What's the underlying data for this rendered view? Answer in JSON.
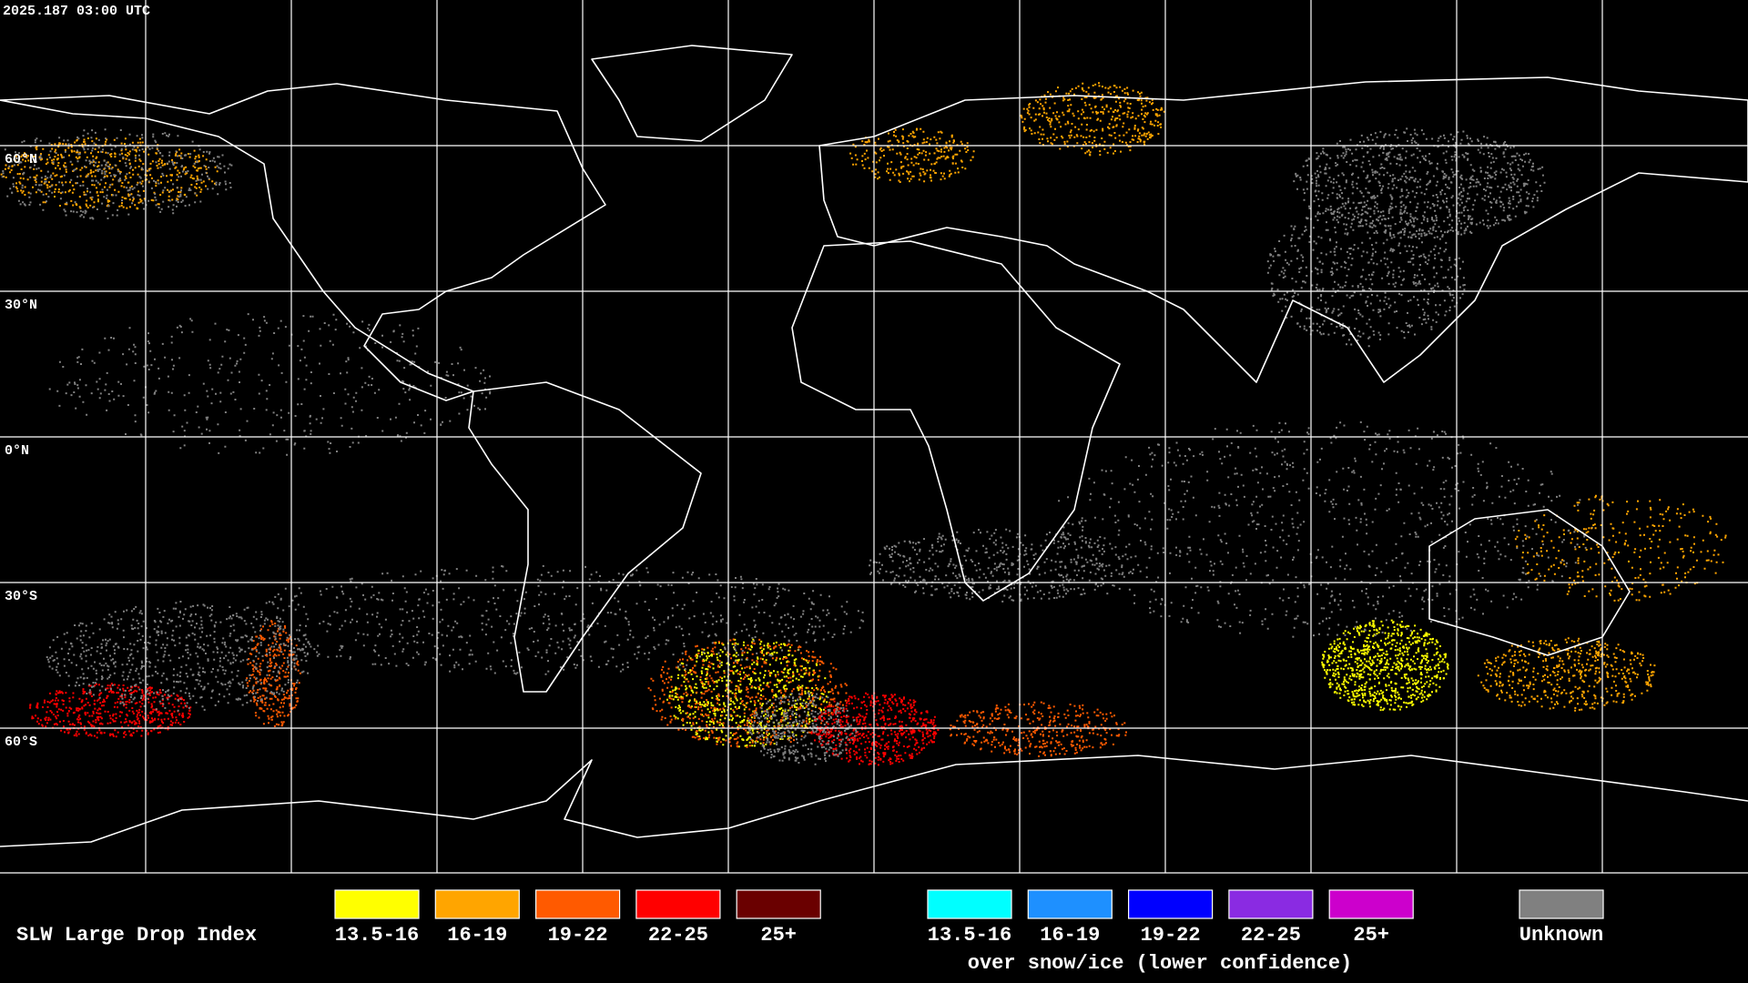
{
  "header": {
    "timestamp": "2025.187 03:00 UTC"
  },
  "map": {
    "latitude_labels": [
      "60°N",
      "30°N",
      "0°N",
      "30°S",
      "60°S"
    ]
  },
  "legend": {
    "title": "SLW Large Drop Index",
    "items": [
      {
        "label": "13.5-16",
        "color": "#ffff00"
      },
      {
        "label": "16-19",
        "color": "#ffa500"
      },
      {
        "label": "19-22",
        "color": "#ff5a00"
      },
      {
        "label": "22-25",
        "color": "#ff0000"
      },
      {
        "label": "25+",
        "color": "#6a0000"
      }
    ],
    "snow_items": [
      {
        "label": "13.5-16",
        "color": "#00ffff"
      },
      {
        "label": "16-19",
        "color": "#1e90ff"
      },
      {
        "label": "19-22",
        "color": "#0000ff"
      },
      {
        "label": "22-25",
        "color": "#8a2be2"
      },
      {
        "label": "25+",
        "color": "#cc00cc"
      }
    ],
    "snow_caption": "over snow/ice (lower confidence)",
    "unknown": {
      "label": "Unknown",
      "color": "#808080"
    }
  }
}
